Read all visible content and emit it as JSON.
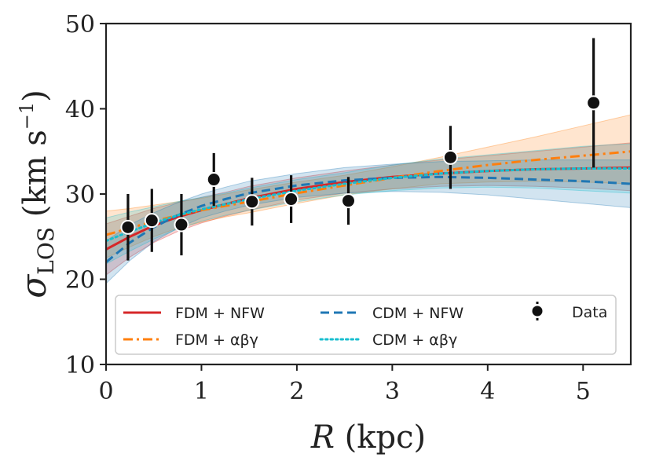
{
  "chart_data": {
    "type": "line",
    "title": "",
    "xlabel": "R (kpc)",
    "ylabel": "σ_LOS (km s⁻¹)",
    "xlim": [
      0,
      5.5
    ],
    "ylim": [
      10,
      50
    ],
    "xticks": [
      0,
      1,
      2,
      3,
      4,
      5
    ],
    "yticks": [
      10,
      20,
      30,
      40,
      50
    ],
    "grid": false,
    "legend_position": "lower-center",
    "x": [
      0,
      0.25,
      0.5,
      0.75,
      1.0,
      1.25,
      1.5,
      2.0,
      2.5,
      3.0,
      3.5,
      4.0,
      4.5,
      5.0,
      5.5
    ],
    "series": [
      {
        "name": "FDM + NFW",
        "style": "solid",
        "color": "#d62728",
        "y": [
          23.5,
          25.0,
          26.3,
          27.3,
          28.1,
          28.8,
          29.5,
          30.6,
          31.4,
          32.0,
          32.4,
          32.7,
          32.9,
          33.0,
          33.1
        ],
        "band_low": [
          20.5,
          22.6,
          24.3,
          25.6,
          26.6,
          27.4,
          28.1,
          29.3,
          30.1,
          30.6,
          30.9,
          31.0,
          30.9,
          30.7,
          30.4
        ],
        "band_high": [
          26.5,
          27.4,
          28.3,
          29.0,
          29.6,
          30.2,
          30.9,
          31.9,
          32.7,
          33.4,
          34.0,
          34.5,
          35.0,
          35.5,
          36.0
        ]
      },
      {
        "name": "FDM + αβγ",
        "style": "dashdot",
        "color": "#ff7f0e",
        "y": [
          25.2,
          26.0,
          26.8,
          27.5,
          28.1,
          28.6,
          29.1,
          30.1,
          31.0,
          31.9,
          32.7,
          33.4,
          34.0,
          34.5,
          35.0
        ],
        "band_low": [
          22.5,
          23.8,
          25.0,
          26.0,
          26.7,
          27.3,
          27.8,
          28.9,
          29.9,
          30.6,
          31.2,
          31.4,
          31.5,
          31.4,
          31.2
        ],
        "band_high": [
          28.0,
          28.3,
          28.7,
          29.1,
          29.5,
          30.0,
          30.5,
          31.4,
          32.2,
          33.2,
          34.3,
          35.5,
          36.7,
          38.0,
          39.3
        ]
      },
      {
        "name": "CDM + NFW",
        "style": "dashed",
        "color": "#1f77b4",
        "y": [
          22.0,
          24.3,
          26.1,
          27.5,
          28.6,
          29.4,
          30.1,
          31.0,
          31.6,
          31.9,
          32.0,
          31.9,
          31.7,
          31.5,
          31.2
        ],
        "band_low": [
          19.5,
          22.2,
          24.4,
          26.0,
          27.2,
          28.0,
          28.7,
          29.6,
          30.1,
          30.3,
          30.2,
          29.9,
          29.4,
          28.9,
          28.4
        ],
        "band_high": [
          24.5,
          26.4,
          27.8,
          29.0,
          30.0,
          30.8,
          31.5,
          32.4,
          33.1,
          33.5,
          33.8,
          33.9,
          34.0,
          34.0,
          34.0
        ]
      },
      {
        "name": "CDM + αβγ",
        "style": "dotted",
        "color": "#17becf",
        "y": [
          24.5,
          25.6,
          26.6,
          27.5,
          28.2,
          28.8,
          29.4,
          30.4,
          31.2,
          31.9,
          32.4,
          32.7,
          32.9,
          33.0,
          33.0
        ],
        "band_low": [
          21.8,
          23.3,
          24.7,
          25.9,
          26.8,
          27.5,
          28.1,
          29.1,
          29.9,
          30.4,
          30.7,
          30.8,
          30.7,
          30.4,
          30.1
        ],
        "band_high": [
          27.2,
          27.9,
          28.5,
          29.1,
          29.6,
          30.1,
          30.7,
          31.7,
          32.5,
          33.4,
          34.1,
          34.6,
          35.1,
          35.6,
          35.9
        ]
      }
    ],
    "data_points": {
      "name": "Data",
      "color": "#111111",
      "points": [
        {
          "x": 0.23,
          "y": 26.1,
          "err": 3.9
        },
        {
          "x": 0.48,
          "y": 26.9,
          "err": 3.7
        },
        {
          "x": 0.79,
          "y": 26.4,
          "err": 3.6
        },
        {
          "x": 1.13,
          "y": 31.7,
          "err": 3.1
        },
        {
          "x": 1.53,
          "y": 29.1,
          "err": 2.8
        },
        {
          "x": 1.94,
          "y": 29.4,
          "err": 2.8
        },
        {
          "x": 2.54,
          "y": 29.2,
          "err": 2.8
        },
        {
          "x": 3.61,
          "y": 34.3,
          "err": 3.7
        },
        {
          "x": 5.11,
          "y": 40.7,
          "err": 7.6
        }
      ]
    },
    "legend": [
      {
        "label": "FDM + NFW",
        "series": 0
      },
      {
        "label": "FDM + αβγ",
        "series": 1
      },
      {
        "label": "CDM + NFW",
        "series": 2
      },
      {
        "label": "CDM + αβγ",
        "series": 3
      },
      {
        "label": "Data",
        "series": "data"
      }
    ]
  }
}
